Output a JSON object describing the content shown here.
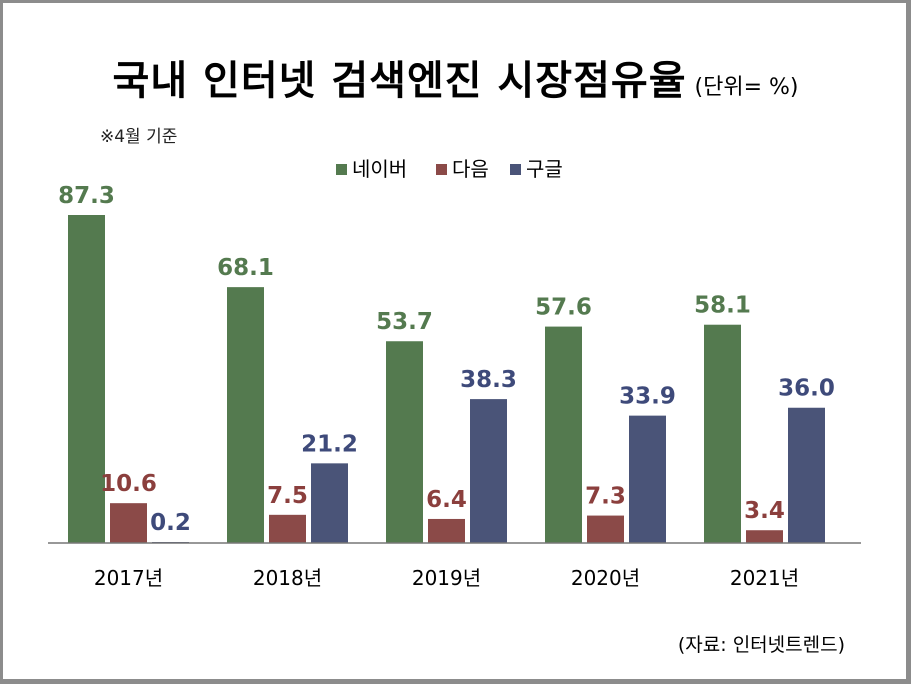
{
  "title": "국내 인터넷 검색엔진 시장점유율",
  "unit": "(단위= %)",
  "note": "※4월 기준",
  "source": "(자료: 인터넷트렌드)",
  "colors": {
    "naver": "#547a4f",
    "daum": "#8b4a48",
    "google": "#4a5478",
    "naver_label": "#547a4f",
    "daum_label": "#8b3f3d",
    "google_label": "#3e4a7a"
  },
  "chart_data": {
    "type": "bar",
    "title": "국내 인터넷 검색엔진 시장점유율",
    "categories": [
      "2017년",
      "2018년",
      "2019년",
      "2020년",
      "2021년"
    ],
    "series": [
      {
        "name": "네이버",
        "values": [
          87.3,
          68.1,
          53.7,
          57.6,
          58.1
        ],
        "labels": [
          "87.3",
          "68.1",
          "53.7",
          "57.6",
          "58.1"
        ]
      },
      {
        "name": "다음",
        "values": [
          10.6,
          7.5,
          6.4,
          7.3,
          3.4
        ],
        "labels": [
          "10.6",
          "7.5",
          "6.4",
          "7.3",
          "3.4"
        ]
      },
      {
        "name": "구글",
        "values": [
          0.2,
          21.2,
          38.3,
          33.9,
          36.0
        ],
        "labels": [
          "0.2",
          "21.2",
          "38.3",
          "33.9",
          "36.0"
        ]
      }
    ],
    "ylim": [
      0,
      87.3
    ],
    "grid": false,
    "legend": "top-center"
  }
}
